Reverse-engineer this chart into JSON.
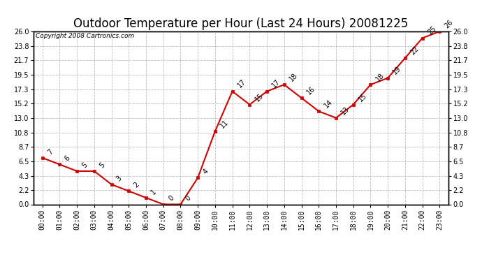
{
  "title": "Outdoor Temperature per Hour (Last 24 Hours) 20081225",
  "copyright": "Copyright 2008 Cartronics.com",
  "hours": [
    "00:00",
    "01:00",
    "02:00",
    "03:00",
    "04:00",
    "05:00",
    "06:00",
    "07:00",
    "08:00",
    "09:00",
    "10:00",
    "11:00",
    "12:00",
    "13:00",
    "14:00",
    "15:00",
    "16:00",
    "17:00",
    "18:00",
    "19:00",
    "20:00",
    "21:00",
    "22:00",
    "23:00"
  ],
  "values": [
    7,
    6,
    5,
    5,
    3,
    2,
    1,
    0,
    0,
    4,
    11,
    17,
    15,
    17,
    18,
    16,
    14,
    13,
    15,
    18,
    19,
    22,
    25,
    26
  ],
  "ylim": [
    0.0,
    26.0
  ],
  "yticks": [
    0.0,
    2.2,
    4.3,
    6.5,
    8.7,
    10.8,
    13.0,
    15.2,
    17.3,
    19.5,
    21.7,
    23.8,
    26.0
  ],
  "line_color": "#cc0000",
  "marker_color": "#cc0000",
  "bg_color": "#ffffff",
  "grid_color": "#bbbbbb",
  "title_fontsize": 12,
  "tick_fontsize": 7,
  "annotation_fontsize": 7,
  "copyright_fontsize": 6.5
}
